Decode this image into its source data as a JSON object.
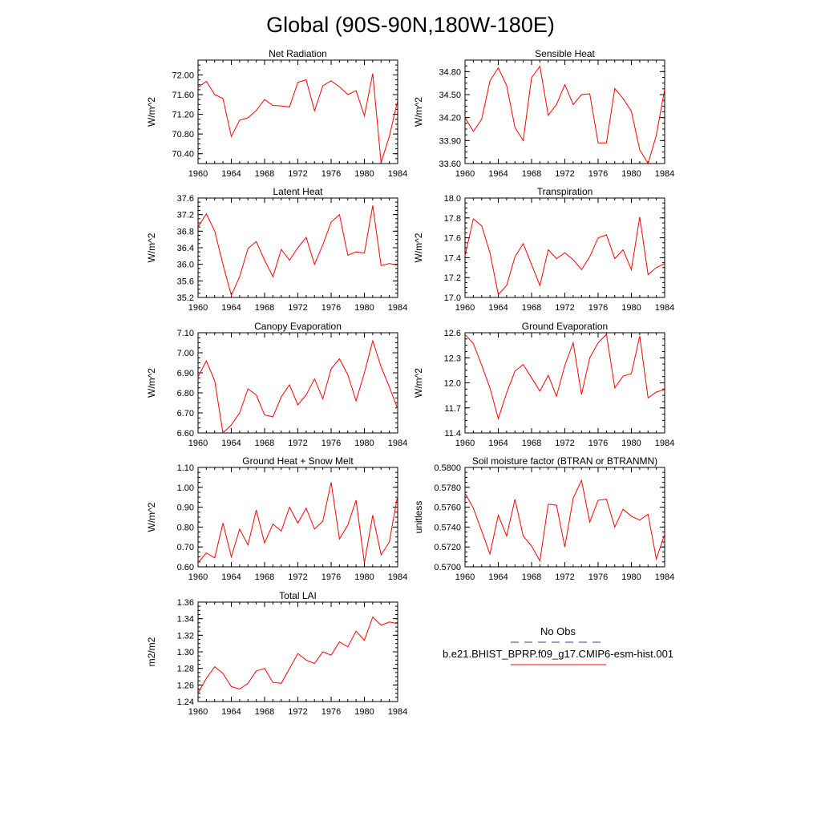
{
  "page": {
    "title": "Global (90S-90N,180W-180E)"
  },
  "legend": {
    "obs_label": "No Obs",
    "obs_color": "#3b3b8f",
    "model_label": "b.e21.BHIST_BPRP.f09_g17.CMIP6-esm-hist.001",
    "model_color": "#ff0000"
  },
  "chart_data": [
    {
      "type": "line",
      "title": "Net Radiation",
      "ylabel": "W/m^2",
      "xlim": [
        1960,
        1984
      ],
      "ylim": [
        70.2,
        72.3
      ],
      "xticks": [
        "1960",
        "1964",
        "1968",
        "1972",
        "1976",
        "1980",
        "1984"
      ],
      "yticks": [
        "70.40",
        "70.80",
        "71.20",
        "71.60",
        "72.00"
      ],
      "x": [
        1960,
        1961,
        1962,
        1963,
        1964,
        1965,
        1966,
        1967,
        1968,
        1969,
        1970,
        1971,
        1972,
        1973,
        1974,
        1975,
        1976,
        1977,
        1978,
        1979,
        1980,
        1981,
        1982,
        1983,
        1984
      ],
      "series": [
        {
          "color": "#ff0000",
          "values": [
            71.75,
            71.87,
            71.6,
            71.52,
            70.75,
            71.08,
            71.13,
            71.28,
            71.5,
            71.38,
            71.37,
            71.35,
            71.85,
            71.9,
            71.27,
            71.78,
            71.88,
            71.76,
            71.6,
            71.68,
            71.17,
            72.03,
            70.22,
            70.75,
            71.48
          ]
        }
      ]
    },
    {
      "type": "line",
      "title": "Sensible Heat",
      "ylabel": "W/m^2",
      "xlim": [
        1960,
        1984
      ],
      "ylim": [
        33.6,
        34.95
      ],
      "xticks": [
        "1960",
        "1964",
        "1968",
        "1972",
        "1976",
        "1980",
        "1984"
      ],
      "yticks": [
        "33.60",
        "33.90",
        "34.20",
        "34.50",
        "34.80"
      ],
      "x": [
        1960,
        1961,
        1962,
        1963,
        1964,
        1965,
        1966,
        1967,
        1968,
        1969,
        1970,
        1971,
        1972,
        1973,
        1974,
        1975,
        1976,
        1977,
        1978,
        1979,
        1980,
        1981,
        1982,
        1983,
        1984
      ],
      "series": [
        {
          "color": "#ff0000",
          "values": [
            34.2,
            34.02,
            34.18,
            34.68,
            34.85,
            34.62,
            34.07,
            33.9,
            34.72,
            34.87,
            34.23,
            34.37,
            34.63,
            34.37,
            34.5,
            34.51,
            33.87,
            33.87,
            34.58,
            34.45,
            34.28,
            33.78,
            33.6,
            33.97,
            34.57
          ]
        }
      ]
    },
    {
      "type": "line",
      "title": "Latent Heat",
      "ylabel": "W/m^2",
      "xlim": [
        1960,
        1984
      ],
      "ylim": [
        35.2,
        37.6
      ],
      "xticks": [
        "1960",
        "1964",
        "1968",
        "1972",
        "1976",
        "1980",
        "1984"
      ],
      "yticks": [
        "35.2",
        "35.6",
        "36.0",
        "36.4",
        "36.8",
        "37.2",
        "37.6"
      ],
      "x": [
        1960,
        1961,
        1962,
        1963,
        1964,
        1965,
        1966,
        1967,
        1968,
        1969,
        1970,
        1971,
        1972,
        1973,
        1974,
        1975,
        1976,
        1977,
        1978,
        1979,
        1980,
        1981,
        1982,
        1983,
        1984
      ],
      "series": [
        {
          "color": "#ff0000",
          "values": [
            36.9,
            37.22,
            36.8,
            36.0,
            35.25,
            35.7,
            36.38,
            36.55,
            36.1,
            35.7,
            36.36,
            36.1,
            36.4,
            36.65,
            36.0,
            36.47,
            37.02,
            37.2,
            36.22,
            36.3,
            36.27,
            37.42,
            35.97,
            36.02,
            35.98
          ]
        }
      ]
    },
    {
      "type": "line",
      "title": "Transpiration",
      "ylabel": "W/m^2",
      "xlim": [
        1960,
        1984
      ],
      "ylim": [
        17.0,
        18.0
      ],
      "xticks": [
        "1960",
        "1964",
        "1968",
        "1972",
        "1976",
        "1980",
        "1984"
      ],
      "yticks": [
        "17.0",
        "17.2",
        "17.4",
        "17.6",
        "17.8",
        "18.0"
      ],
      "x": [
        1960,
        1961,
        1962,
        1963,
        1964,
        1965,
        1966,
        1967,
        1968,
        1969,
        1970,
        1971,
        1972,
        1973,
        1974,
        1975,
        1976,
        1977,
        1978,
        1979,
        1980,
        1981,
        1982,
        1983,
        1984
      ],
      "series": [
        {
          "color": "#ff0000",
          "values": [
            17.42,
            17.79,
            17.72,
            17.45,
            17.03,
            17.12,
            17.41,
            17.54,
            17.33,
            17.12,
            17.48,
            17.39,
            17.45,
            17.38,
            17.28,
            17.41,
            17.6,
            17.63,
            17.39,
            17.48,
            17.28,
            17.81,
            17.23,
            17.3,
            17.34
          ]
        }
      ]
    },
    {
      "type": "line",
      "title": "Canopy Evaporation",
      "ylabel": "W/m^2",
      "xlim": [
        1960,
        1984
      ],
      "ylim": [
        6.6,
        7.1
      ],
      "xticks": [
        "1960",
        "1964",
        "1968",
        "1972",
        "1976",
        "1980",
        "1984"
      ],
      "yticks": [
        "6.60",
        "6.70",
        "6.80",
        "6.90",
        "7.00",
        "7.10"
      ],
      "x": [
        1960,
        1961,
        1962,
        1963,
        1964,
        1965,
        1966,
        1967,
        1968,
        1969,
        1970,
        1971,
        1972,
        1973,
        1974,
        1975,
        1976,
        1977,
        1978,
        1979,
        1980,
        1981,
        1982,
        1983,
        1984
      ],
      "series": [
        {
          "color": "#ff0000",
          "values": [
            6.88,
            6.96,
            6.86,
            6.6,
            6.64,
            6.7,
            6.82,
            6.79,
            6.69,
            6.68,
            6.78,
            6.84,
            6.74,
            6.79,
            6.87,
            6.77,
            6.92,
            6.97,
            6.89,
            6.76,
            6.9,
            7.06,
            6.93,
            6.83,
            6.72
          ]
        }
      ]
    },
    {
      "type": "line",
      "title": "Ground Evaporation",
      "ylabel": "W/m^2",
      "xlim": [
        1960,
        1984
      ],
      "ylim": [
        11.4,
        12.6
      ],
      "xticks": [
        "1960",
        "1964",
        "1968",
        "1972",
        "1976",
        "1980",
        "1984"
      ],
      "yticks": [
        "11.4",
        "11.7",
        "12.0",
        "12.3",
        "12.6"
      ],
      "x": [
        1960,
        1961,
        1962,
        1963,
        1964,
        1965,
        1966,
        1967,
        1968,
        1969,
        1970,
        1971,
        1972,
        1973,
        1974,
        1975,
        1976,
        1977,
        1978,
        1979,
        1980,
        1981,
        1982,
        1983,
        1984
      ],
      "series": [
        {
          "color": "#ff0000",
          "values": [
            12.58,
            12.47,
            12.21,
            11.94,
            11.57,
            11.88,
            12.14,
            12.22,
            12.06,
            11.9,
            12.09,
            11.84,
            12.21,
            12.48,
            11.86,
            12.3,
            12.48,
            12.58,
            11.94,
            12.08,
            12.11,
            12.56,
            11.82,
            11.89,
            11.92
          ]
        }
      ]
    },
    {
      "type": "line",
      "title": "Ground Heat + Snow Melt",
      "ylabel": "W/m^2",
      "xlim": [
        1960,
        1984
      ],
      "ylim": [
        0.6,
        1.1
      ],
      "xticks": [
        "1960",
        "1964",
        "1968",
        "1972",
        "1976",
        "1980",
        "1984"
      ],
      "yticks": [
        "0.60",
        "0.70",
        "0.80",
        "0.90",
        "1.00",
        "1.10"
      ],
      "x": [
        1960,
        1961,
        1962,
        1963,
        1964,
        1965,
        1966,
        1967,
        1968,
        1969,
        1970,
        1971,
        1972,
        1973,
        1974,
        1975,
        1976,
        1977,
        1978,
        1979,
        1980,
        1981,
        1982,
        1983,
        1984
      ],
      "series": [
        {
          "color": "#ff0000",
          "values": [
            0.62,
            0.67,
            0.645,
            0.82,
            0.65,
            0.79,
            0.71,
            0.885,
            0.72,
            0.815,
            0.78,
            0.9,
            0.82,
            0.895,
            0.79,
            0.83,
            1.025,
            0.74,
            0.81,
            0.935,
            0.62,
            0.86,
            0.66,
            0.725,
            0.96
          ]
        }
      ]
    },
    {
      "type": "line",
      "title": "Soil moisture factor (BTRAN or BTRANMN)",
      "ylabel": "unitless",
      "xlim": [
        1960,
        1984
      ],
      "ylim": [
        0.57,
        0.58
      ],
      "xticks": [
        "1960",
        "1964",
        "1968",
        "1972",
        "1976",
        "1980",
        "1984"
      ],
      "yticks": [
        "0.5700",
        "0.5720",
        "0.5740",
        "0.5760",
        "0.5780",
        "0.5800"
      ],
      "x": [
        1960,
        1961,
        1962,
        1963,
        1964,
        1965,
        1966,
        1967,
        1968,
        1969,
        1970,
        1971,
        1972,
        1973,
        1974,
        1975,
        1976,
        1977,
        1978,
        1979,
        1980,
        1981,
        1982,
        1983,
        1984
      ],
      "series": [
        {
          "color": "#ff0000",
          "values": [
            0.5774,
            0.5759,
            0.5736,
            0.5713,
            0.5752,
            0.5731,
            0.5768,
            0.5731,
            0.5721,
            0.5706,
            0.5763,
            0.5762,
            0.572,
            0.5769,
            0.5787,
            0.5745,
            0.5767,
            0.5768,
            0.574,
            0.5758,
            0.5751,
            0.5747,
            0.5753,
            0.5708,
            0.5733
          ]
        }
      ]
    },
    {
      "type": "line",
      "title": "Total LAI",
      "ylabel": "m2/m2",
      "xlim": [
        1960,
        1984
      ],
      "ylim": [
        1.24,
        1.36
      ],
      "xticks": [
        "1960",
        "1964",
        "1968",
        "1972",
        "1976",
        "1980",
        "1984"
      ],
      "yticks": [
        "1.24",
        "1.26",
        "1.28",
        "1.30",
        "1.32",
        "1.34",
        "1.36"
      ],
      "x": [
        1960,
        1961,
        1962,
        1963,
        1964,
        1965,
        1966,
        1967,
        1968,
        1969,
        1970,
        1971,
        1972,
        1973,
        1974,
        1975,
        1976,
        1977,
        1978,
        1979,
        1980,
        1981,
        1982,
        1983,
        1984
      ],
      "series": [
        {
          "color": "#ff0000",
          "values": [
            1.25,
            1.268,
            1.282,
            1.274,
            1.258,
            1.255,
            1.262,
            1.277,
            1.28,
            1.263,
            1.262,
            1.28,
            1.298,
            1.29,
            1.286,
            1.3,
            1.296,
            1.312,
            1.306,
            1.325,
            1.314,
            1.342,
            1.332,
            1.336,
            1.334
          ]
        }
      ]
    }
  ]
}
